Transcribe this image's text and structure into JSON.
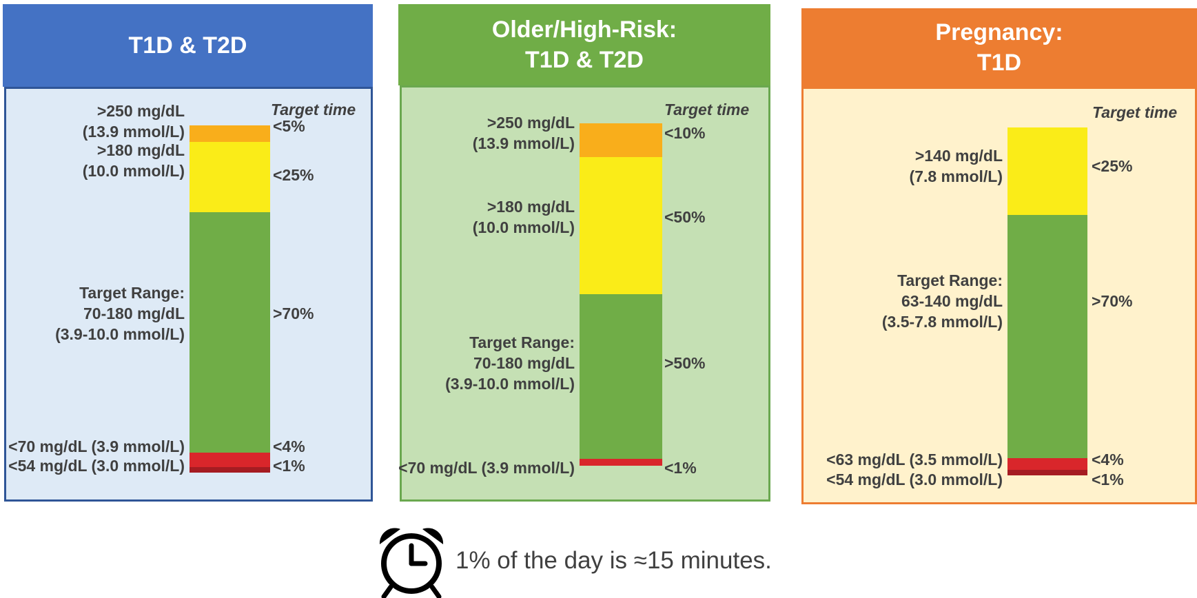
{
  "chart_data": [
    {
      "type": "bar",
      "title": "T1D & T2D",
      "header_color": "#4472C4",
      "border_color": "#2F5597",
      "body_color": "#DEEAF6",
      "target_time_label": "Target time",
      "segments": [
        {
          "level": ">250 mg/dL",
          "label": ">250 mg/dL\n(13.9 mmol/L)",
          "target": "<5%",
          "color": "#F9AE1B"
        },
        {
          "level": ">180 mg/dL",
          "label": ">180 mg/dL\n(10.0 mmol/L)",
          "target": "<25%",
          "color": "#FAEC18"
        },
        {
          "level": "Target Range",
          "label": "Target Range:\n70-180 mg/dL\n(3.9-10.0 mmol/L)",
          "target": ">70%",
          "color": "#70AD47"
        },
        {
          "level": "<70 mg/dL",
          "label": "<70 mg/dL (3.9 mmol/L)",
          "target": "<4%",
          "color": "#D9262B"
        },
        {
          "level": "<54 mg/dL",
          "label": "<54 mg/dL (3.0 mmol/L)",
          "target": "<1%",
          "color": "#A51C22"
        }
      ]
    },
    {
      "type": "bar",
      "title": "Older/High-Risk:\nT1D & T2D",
      "header_color": "#70AD47",
      "border_color": "#6AA84F",
      "body_color": "#C5E0B4",
      "target_time_label": "Target time",
      "segments": [
        {
          "level": ">250 mg/dL",
          "label": ">250 mg/dL\n(13.9 mmol/L)",
          "target": "<10%",
          "color": "#F9AE1B"
        },
        {
          "level": ">180 mg/dL",
          "label": ">180 mg/dL\n(10.0 mmol/L)",
          "target": "<50%",
          "color": "#FAEC18"
        },
        {
          "level": "Target Range",
          "label": "Target Range:\n70-180 mg/dL\n(3.9-10.0 mmol/L)",
          "target": ">50%",
          "color": "#70AD47"
        },
        {
          "level": "<70 mg/dL",
          "label": "<70 mg/dL (3.9 mmol/L)",
          "target": "<1%",
          "color": "#D9262B"
        }
      ]
    },
    {
      "type": "bar",
      "title": "Pregnancy:\nT1D",
      "header_color": "#ED7D31",
      "border_color": "#ED7D31",
      "body_color": "#FFF2CC",
      "target_time_label": "Target time",
      "segments": [
        {
          "level": ">140 mg/dL",
          "label": ">140 mg/dL\n(7.8 mmol/L)",
          "target": "<25%",
          "color": "#FAEC18"
        },
        {
          "level": "Target Range",
          "label": "Target Range:\n63-140 mg/dL\n(3.5-7.8 mmol/L)",
          "target": ">70%",
          "color": "#70AD47"
        },
        {
          "level": "<63 mg/dL",
          "label": "<63 mg/dL (3.5 mmol/L)",
          "target": "<4%",
          "color": "#D9262B"
        },
        {
          "level": "<54 mg/dL",
          "label": "<54 mg/dL (3.0 mmol/L)",
          "target": "<1%",
          "color": "#A51C22"
        }
      ]
    }
  ],
  "footer": {
    "icon": "alarm-clock-icon",
    "text": "1% of the day is ≈15 minutes."
  }
}
